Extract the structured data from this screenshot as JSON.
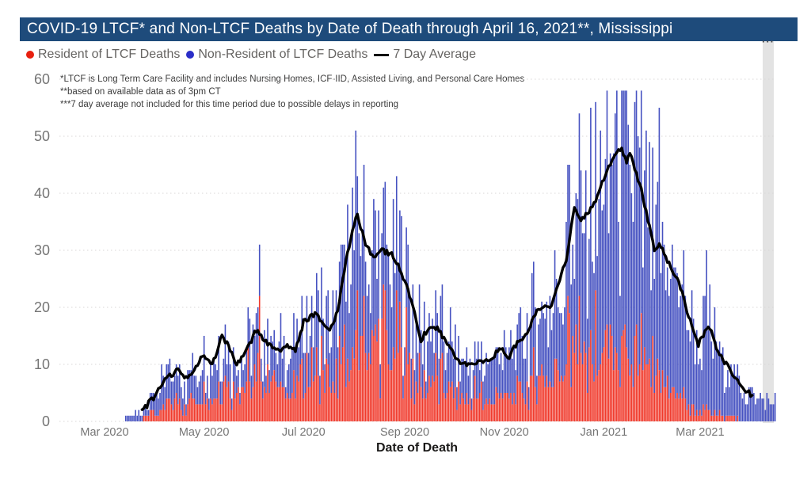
{
  "header": {
    "title": "COVID-19 LTCF* and Non-LTCF Deaths by Date of Death through April 16, 2021**, Mississippi"
  },
  "legend": {
    "items": [
      {
        "label": "Resident of LTCF Deaths",
        "color": "#E8200F",
        "marker": "circle"
      },
      {
        "label": "Non-Resident of LTCF Deaths",
        "color": "#2B2EC8",
        "marker": "circle"
      },
      {
        "label": "7 Day Average",
        "color": "#000000",
        "marker": "line"
      }
    ]
  },
  "footnotes": [
    "*LTCF is Long Term Care Facility and includes Nursing Homes, ICF-IID, Assisted Living, and Personal Care Homes",
    "**based on available data as of 3pm CT",
    "***7 day average not included for this time period due to possible delays in reporting"
  ],
  "more_options": "···",
  "chart_data": {
    "type": "stacked-bar-line-combo",
    "title": "COVID-19 LTCF* and Non-LTCF Deaths by Date of Death through April 16, 2021**, Mississippi",
    "xlabel": "Date of Death",
    "ylabel": "",
    "ylim": [
      0,
      60
    ],
    "yticks": [
      0,
      10,
      20,
      30,
      40,
      50,
      60
    ],
    "xticks": [
      {
        "label": "Mar 2020",
        "day": 0
      },
      {
        "label": "May 2020",
        "day": 61
      },
      {
        "label": "Jul 2020",
        "day": 122
      },
      {
        "label": "Sep 2020",
        "day": 184
      },
      {
        "label": "Nov 2020",
        "day": 245
      },
      {
        "label": "Jan 2021",
        "day": 306
      },
      {
        "label": "Mar 2021",
        "day": 365
      }
    ],
    "base_date": "2020-03-01",
    "bars_start_day": 13,
    "bars_end_day": 411,
    "avg_line_start_day": 23,
    "avg_line_end_day": 397,
    "grid": true,
    "legend_position": "top",
    "series": [
      {
        "name": "Resident of LTCF Deaths",
        "role": "bar-bottom",
        "color": "#F0392B"
      },
      {
        "name": "Non-Resident of LTCF Deaths",
        "role": "bar-top",
        "color": "#4652C1"
      },
      {
        "name": "7 Day Average",
        "role": "line",
        "color": "#000000"
      }
    ],
    "trend_keypoints": [
      [
        13,
        0.8
      ],
      [
        18,
        1.2
      ],
      [
        23,
        1.8
      ],
      [
        31,
        4.5
      ],
      [
        38,
        7.6
      ],
      [
        45,
        8.9
      ],
      [
        51,
        7.5
      ],
      [
        61,
        11.7
      ],
      [
        66,
        9.7
      ],
      [
        72,
        15.0
      ],
      [
        76,
        13.2
      ],
      [
        81,
        9.8
      ],
      [
        88,
        13.0
      ],
      [
        93,
        16.0
      ],
      [
        100,
        13.8
      ],
      [
        106,
        12.4
      ],
      [
        112,
        13.2
      ],
      [
        117,
        12.5
      ],
      [
        122,
        17.4
      ],
      [
        129,
        19.0
      ],
      [
        135,
        16.5
      ],
      [
        138,
        16.0
      ],
      [
        143,
        19.3
      ],
      [
        148,
        28.1
      ],
      [
        152,
        33.2
      ],
      [
        155,
        36.4
      ],
      [
        160,
        30.8
      ],
      [
        165,
        29.0
      ],
      [
        170,
        29.9
      ],
      [
        176,
        29.4
      ],
      [
        181,
        26.7
      ],
      [
        185,
        23.9
      ],
      [
        189,
        20.1
      ],
      [
        194,
        14.2
      ],
      [
        199,
        16.7
      ],
      [
        204,
        16.3
      ],
      [
        209,
        14.2
      ],
      [
        214,
        11.8
      ],
      [
        218,
        10.4
      ],
      [
        223,
        10.0
      ],
      [
        228,
        10.3
      ],
      [
        233,
        10.4
      ],
      [
        238,
        11.4
      ],
      [
        243,
        12.8
      ],
      [
        247,
        11.0
      ],
      [
        253,
        13.7
      ],
      [
        260,
        16.0
      ],
      [
        265,
        19.7
      ],
      [
        268,
        20.1
      ],
      [
        273,
        19.7
      ],
      [
        278,
        23.9
      ],
      [
        283,
        28.5
      ],
      [
        288,
        37.4
      ],
      [
        292,
        35.5
      ],
      [
        296,
        36.5
      ],
      [
        300,
        38.0
      ],
      [
        304,
        41.0
      ],
      [
        308,
        44.0
      ],
      [
        313,
        47.0
      ],
      [
        317,
        47.8
      ],
      [
        320,
        45.7
      ],
      [
        322,
        47.1
      ],
      [
        325,
        44.5
      ],
      [
        329,
        40.5
      ],
      [
        333,
        35.5
      ],
      [
        337,
        30.0
      ],
      [
        340,
        31.0
      ],
      [
        343,
        29.5
      ],
      [
        348,
        26.5
      ],
      [
        352,
        24.5
      ],
      [
        356,
        20.5
      ],
      [
        360,
        16.5
      ],
      [
        364,
        13.5
      ],
      [
        368,
        15.8
      ],
      [
        371,
        16.3
      ],
      [
        375,
        13.0
      ],
      [
        379,
        11.0
      ],
      [
        384,
        8.6
      ],
      [
        389,
        6.8
      ],
      [
        394,
        5.2
      ],
      [
        397,
        4.6
      ],
      [
        402,
        4.2
      ],
      [
        406,
        3.4
      ],
      [
        411,
        3.0
      ]
    ],
    "ltcf_fraction_keypoints": [
      [
        13,
        0.1
      ],
      [
        23,
        0.25
      ],
      [
        38,
        0.35
      ],
      [
        61,
        0.45
      ],
      [
        72,
        0.5
      ],
      [
        93,
        0.55
      ],
      [
        122,
        0.45
      ],
      [
        155,
        0.42
      ],
      [
        185,
        0.45
      ],
      [
        214,
        0.42
      ],
      [
        243,
        0.38
      ],
      [
        273,
        0.36
      ],
      [
        288,
        0.36
      ],
      [
        317,
        0.26
      ],
      [
        345,
        0.22
      ],
      [
        365,
        0.12
      ],
      [
        380,
        0.08
      ],
      [
        411,
        0.05
      ]
    ]
  }
}
